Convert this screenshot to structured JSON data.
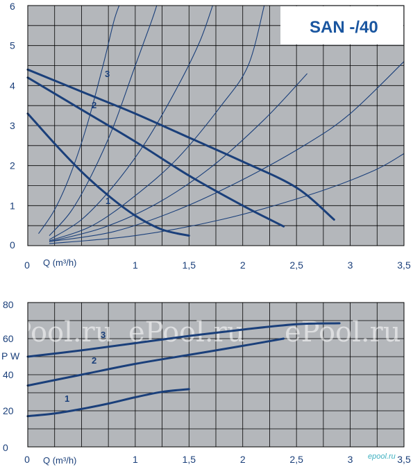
{
  "chart_data": [
    {
      "type": "line",
      "title": "SAN -/40",
      "xlabel": "Q (m³/h)",
      "ylabel": "",
      "xlim": [
        0,
        3.5
      ],
      "ylim": [
        0,
        6
      ],
      "x_ticks": [
        "0",
        "1",
        "1,5",
        "2",
        "2,5",
        "3",
        "3,5"
      ],
      "y_ticks": [
        "0",
        "1",
        "2",
        "3",
        "4",
        "5",
        "6"
      ],
      "grid": true,
      "colors": {
        "background": "#b4b7bb",
        "grid": "#000000",
        "curve": "#1a3f7a"
      },
      "series": [
        {
          "name": "1",
          "x": [
            0,
            0.25,
            0.5,
            0.75,
            1.0,
            1.25,
            1.5
          ],
          "y": [
            3.3,
            2.55,
            1.85,
            1.25,
            0.75,
            0.4,
            0.25
          ]
        },
        {
          "name": "2",
          "x": [
            0,
            0.5,
            1.0,
            1.5,
            2.0,
            2.38
          ],
          "y": [
            4.2,
            3.4,
            2.6,
            1.75,
            1.0,
            0.48
          ]
        },
        {
          "name": "3",
          "x": [
            0,
            0.5,
            1.0,
            1.5,
            2.0,
            2.5,
            2.85
          ],
          "y": [
            4.4,
            3.85,
            3.3,
            2.7,
            2.1,
            1.45,
            0.65
          ]
        }
      ],
      "system_curves": [
        {
          "x": [
            0.1,
            0.25,
            0.4,
            0.55,
            0.7,
            0.8,
            0.85
          ],
          "y": [
            0.3,
            0.9,
            1.8,
            3.0,
            4.5,
            5.6,
            6.0
          ]
        },
        {
          "x": [
            0.2,
            0.4,
            0.6,
            0.8,
            1.0,
            1.15,
            1.2
          ],
          "y": [
            0.25,
            0.85,
            1.8,
            3.0,
            4.5,
            5.6,
            6.0
          ]
        },
        {
          "x": [
            0.2,
            0.5,
            0.8,
            1.1,
            1.4,
            1.6,
            1.72
          ],
          "y": [
            0.15,
            0.65,
            1.5,
            2.6,
            4.0,
            5.1,
            6.0
          ]
        },
        {
          "x": [
            0.2,
            0.6,
            1.0,
            1.4,
            1.8,
            2.05,
            2.2
          ],
          "y": [
            0.12,
            0.5,
            1.25,
            2.2,
            3.5,
            4.5,
            6.0
          ]
        },
        {
          "x": [
            0.2,
            0.7,
            1.2,
            1.7,
            2.2,
            2.6
          ],
          "y": [
            0.1,
            0.45,
            1.05,
            1.95,
            3.15,
            4.3
          ]
        },
        {
          "x": [
            0.2,
            0.8,
            1.4,
            2.0,
            2.6,
            3.0,
            3.5
          ],
          "y": [
            0.1,
            0.35,
            0.9,
            1.65,
            2.55,
            3.3,
            4.6
          ]
        },
        {
          "x": [
            0.2,
            1.0,
            1.8,
            2.6,
            3.2,
            3.5
          ],
          "y": [
            0.05,
            0.25,
            0.65,
            1.25,
            1.85,
            2.3
          ]
        }
      ]
    },
    {
      "type": "line",
      "title": "",
      "xlabel": "Q (m³/h)",
      "ylabel": "P W",
      "xlim": [
        0,
        3.5
      ],
      "ylim": [
        0,
        80
      ],
      "x_ticks": [
        "0",
        "1",
        "1,5",
        "2",
        "2,5",
        "3",
        "3,5"
      ],
      "y_ticks": [
        "0",
        "20",
        "40",
        "60",
        "80"
      ],
      "grid": true,
      "colors": {
        "background": "#b4b7bb",
        "grid": "#000000",
        "curve": "#1a3f7a"
      },
      "series": [
        {
          "name": "1",
          "x": [
            0,
            0.25,
            0.5,
            0.75,
            1.0,
            1.25,
            1.5
          ],
          "y": [
            17,
            18.5,
            21,
            24,
            27.5,
            30.5,
            32
          ]
        },
        {
          "name": "2",
          "x": [
            0,
            0.5,
            1.0,
            1.5,
            2.0,
            2.38
          ],
          "y": [
            34,
            40,
            46,
            51,
            56,
            60
          ]
        },
        {
          "name": "3",
          "x": [
            0,
            0.5,
            1.0,
            1.5,
            2.0,
            2.5,
            2.9
          ],
          "y": [
            50,
            53.5,
            57.5,
            61.5,
            65,
            68,
            68.5
          ]
        }
      ]
    }
  ],
  "watermark": "ePool.ru",
  "brand": "epool.ru"
}
